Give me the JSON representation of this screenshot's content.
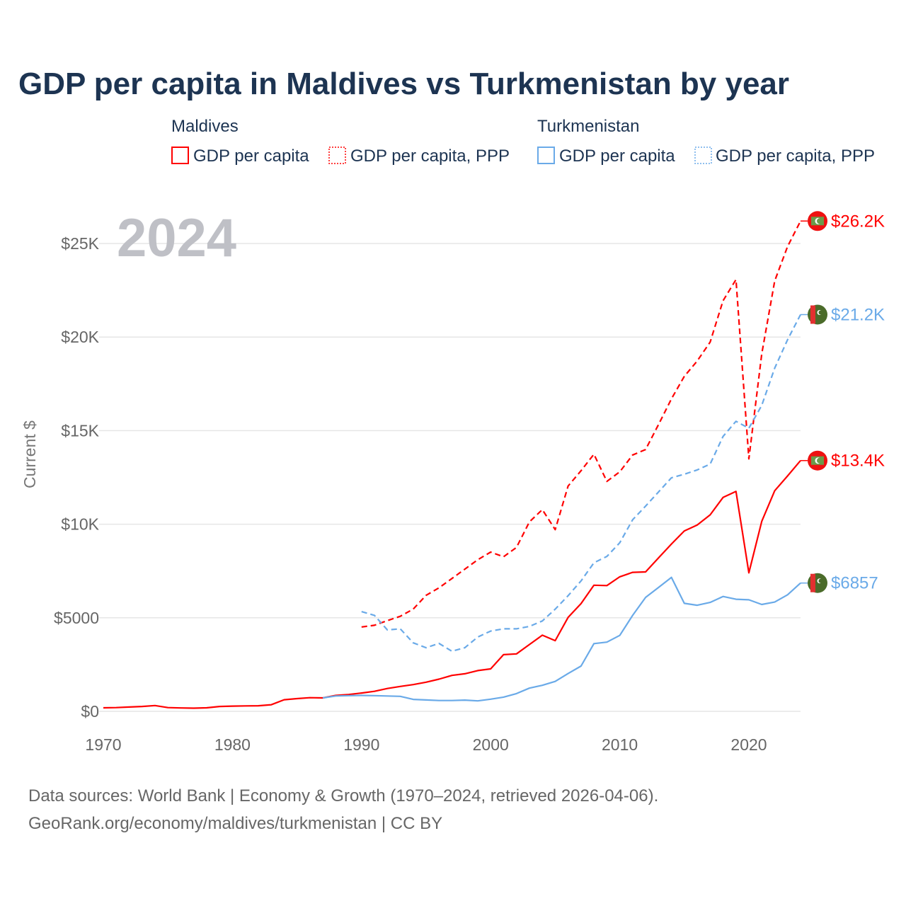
{
  "chart_data": {
    "type": "line",
    "title": "GDP per capita in Maldives vs Turkmenistan by year",
    "current_year_label": "2024",
    "ylabel": "Current $",
    "xlabel": "",
    "xlim": [
      1970,
      2024
    ],
    "ylim": [
      0,
      27000
    ],
    "x_ticks": [
      1970,
      1980,
      1990,
      2000,
      2010,
      2020
    ],
    "x_tick_labels": [
      "1970",
      "1980",
      "1990",
      "2000",
      "2010",
      "2020"
    ],
    "y_ticks": [
      0,
      5000,
      10000,
      15000,
      20000,
      25000
    ],
    "y_tick_labels": [
      "$0",
      "$5000",
      "$10K",
      "$15K",
      "$20K",
      "$25K"
    ],
    "grid": true,
    "legend": {
      "placement": "top",
      "groups": [
        {
          "name": "Maldives",
          "items": [
            "GDP per capita",
            "GDP per capita, PPP"
          ]
        },
        {
          "name": "Turkmenistan",
          "items": [
            "GDP per capita",
            "GDP per capita, PPP"
          ]
        }
      ]
    },
    "series": [
      {
        "name": "Maldives GDP per capita",
        "country": "Maldives",
        "style": "solid",
        "color": "#ff0000",
        "start_year": 1970,
        "end_label": "$13.4K",
        "values": [
          190,
          200,
          230,
          260,
          310,
          200,
          180,
          170,
          190,
          260,
          280,
          290,
          300,
          350,
          620,
          680,
          730,
          720,
          850,
          900,
          980,
          1070,
          1220,
          1330,
          1430,
          1560,
          1720,
          1920,
          2010,
          2180,
          2270,
          3030,
          3070,
          3570,
          4070,
          3780,
          5020,
          5760,
          6740,
          6720,
          7190,
          7430,
          7450,
          8200,
          8940,
          9640,
          9960,
          10500,
          11430,
          11750,
          7400,
          10150,
          11790,
          12580,
          13400
        ]
      },
      {
        "name": "Maldives GDP per capita, PPP",
        "country": "Maldives",
        "style": "dashed",
        "color": "#ff0000",
        "start_year": 1990,
        "end_label": "$26.2K",
        "values": [
          4510,
          4600,
          4850,
          5080,
          5460,
          6200,
          6600,
          7100,
          7600,
          8100,
          8510,
          8260,
          8760,
          10120,
          10780,
          9710,
          12040,
          12860,
          13740,
          12290,
          12800,
          13700,
          13990,
          15320,
          16700,
          17900,
          18720,
          19730,
          21940,
          23070,
          13490,
          19100,
          23000,
          24840,
          26200
        ]
      },
      {
        "name": "Turkmenistan GDP per capita",
        "country": "Turkmenistan",
        "style": "solid",
        "color": "#6aaae8",
        "start_year": 1987,
        "end_label": "$6857",
        "values": [
          720,
          820,
          840,
          850,
          840,
          820,
          800,
          640,
          610,
          580,
          580,
          600,
          560,
          650,
          760,
          950,
          1240,
          1390,
          1600,
          2020,
          2420,
          3620,
          3700,
          4060,
          5130,
          6090,
          6620,
          7160,
          5770,
          5670,
          5820,
          6140,
          5990,
          5960,
          5710,
          5840,
          6230,
          6857
        ]
      },
      {
        "name": "Turkmenistan GDP per capita, PPP",
        "country": "Turkmenistan",
        "style": "dashed",
        "color": "#6aaae8",
        "start_year": 1990,
        "end_label": "$21.2K",
        "values": [
          5330,
          5130,
          4350,
          4410,
          3660,
          3400,
          3630,
          3210,
          3400,
          3970,
          4290,
          4410,
          4410,
          4540,
          4830,
          5460,
          6180,
          6970,
          7940,
          8280,
          9010,
          10240,
          10970,
          11720,
          12480,
          12670,
          12900,
          13210,
          14690,
          15500,
          15130,
          16350,
          18340,
          19860,
          21200
        ]
      }
    ],
    "footer": {
      "line1": "Data sources: World Bank | Economy & Growth (1970–2024, retrieved 2026-04-06).",
      "line2": "GeoRank.org/economy/maldives/turkmenistan | CC BY"
    }
  }
}
